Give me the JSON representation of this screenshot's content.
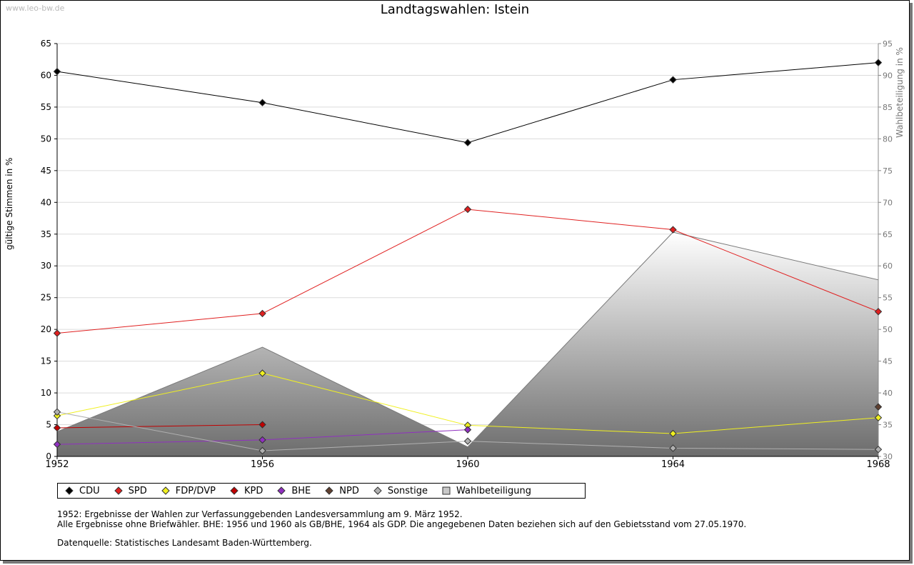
{
  "watermark": "www.leo-bw.de",
  "chart_data": {
    "type": "line",
    "title": "Landtagswahlen: Istein",
    "ylabel": "gültige Stimmen in %",
    "y2label": "Wahlbeteiligung in %",
    "ylim": [
      0,
      65
    ],
    "y2lim": [
      30,
      95
    ],
    "categories": [
      "1952",
      "1956",
      "1960",
      "1964",
      "1968"
    ],
    "yticks": [
      "0",
      "5",
      "10",
      "15",
      "20",
      "25",
      "30",
      "35",
      "40",
      "45",
      "50",
      "55",
      "60",
      "65"
    ],
    "y2ticks": [
      "30",
      "35",
      "40",
      "45",
      "50",
      "55",
      "60",
      "65",
      "70",
      "75",
      "80",
      "85",
      "90",
      "95"
    ],
    "series": [
      {
        "name": "CDU",
        "color": "#000000",
        "values": [
          60.6,
          55.7,
          49.4,
          59.3,
          62.0
        ]
      },
      {
        "name": "SPD",
        "color": "#e02020",
        "values": [
          19.4,
          22.5,
          38.9,
          35.7,
          22.8
        ]
      },
      {
        "name": "FDP/DVP",
        "color": "#f0f020",
        "values": [
          6.4,
          13.1,
          4.9,
          3.6,
          6.1
        ]
      },
      {
        "name": "KPD",
        "color": "#c00000",
        "values": [
          4.5,
          5.0,
          null,
          null,
          null
        ]
      },
      {
        "name": "BHE",
        "color": "#9030c0",
        "values": [
          1.9,
          2.6,
          4.2,
          null,
          null
        ]
      },
      {
        "name": "NPD",
        "color": "#604030",
        "values": [
          null,
          null,
          null,
          null,
          7.8
        ]
      },
      {
        "name": "Sonstige",
        "color": "#b0b0b0",
        "values": [
          7.0,
          0.9,
          2.4,
          1.3,
          1.1
        ]
      }
    ],
    "area": {
      "name": "Wahlbeteiligung",
      "axis": "y2",
      "values": [
        33.9,
        47.2,
        31.5,
        65.3,
        57.8
      ]
    }
  },
  "notes": [
    "1952: Ergebnisse der Wahlen zur Verfassunggebenden Landesversammlung am 9. März 1952.",
    "Alle Ergebnisse ohne Briefwähler. BHE: 1956 und 1960 als GB/BHE, 1964 als GDP. Die angegebenen Daten beziehen sich auf den Gebietsstand vom 27.05.1970."
  ],
  "source": "Datenquelle: Statistisches Landesamt Baden-Württemberg."
}
